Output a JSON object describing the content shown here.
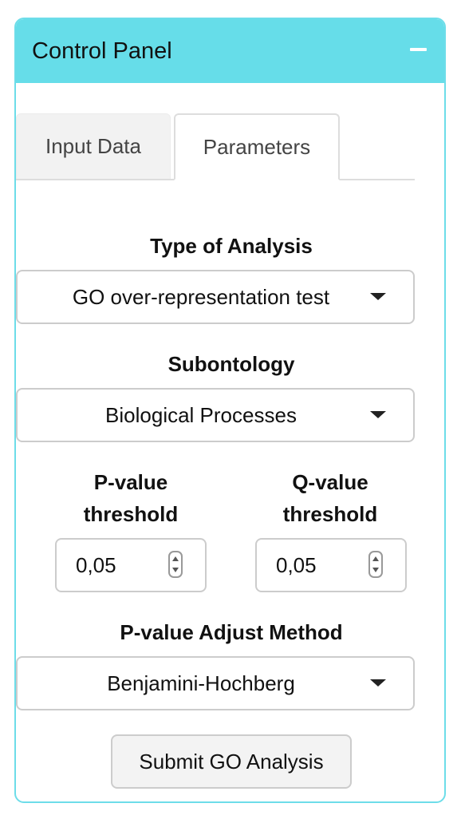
{
  "panel": {
    "title": "Control Panel",
    "collapse_icon": "minus-icon",
    "header_color": "#66dde9"
  },
  "tabs": [
    {
      "label": "Input Data",
      "active": false
    },
    {
      "label": "Parameters",
      "active": true
    }
  ],
  "analysis_type": {
    "label": "Type of Analysis",
    "selected": "GO over-representation test"
  },
  "subontology": {
    "label": "Subontology",
    "selected": "Biological Processes"
  },
  "pvalue": {
    "label_line1": "P-value",
    "label_line2": "threshold",
    "value": "0,05"
  },
  "qvalue": {
    "label_line1": "Q-value",
    "label_line2": "threshold",
    "value": "0,05"
  },
  "adjust_method": {
    "label": "P-value Adjust Method",
    "selected": "Benjamini-Hochberg"
  },
  "submit": {
    "label": "Submit GO Analysis"
  }
}
